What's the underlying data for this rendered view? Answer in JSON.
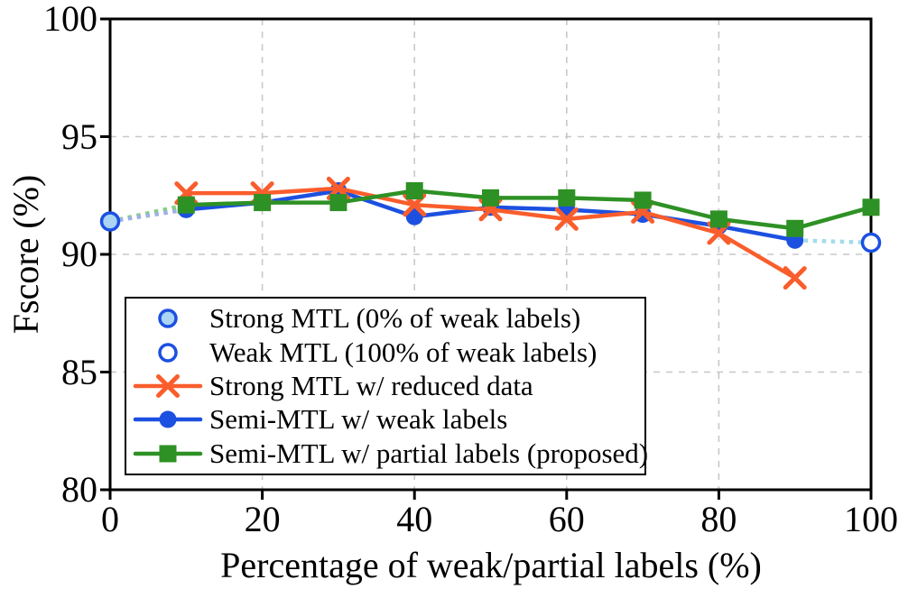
{
  "chart_data": {
    "type": "line",
    "xlabel": "Percentage of weak/partial labels (%)",
    "ylabel": "Fscore (%)",
    "xlim": [
      0,
      100
    ],
    "ylim": [
      80,
      100
    ],
    "x_ticks": [
      0,
      20,
      40,
      60,
      80,
      100
    ],
    "y_ticks": [
      80,
      85,
      90,
      95,
      100
    ],
    "grid": true,
    "legend_position": "lower-left",
    "colors": {
      "orange": "#FA5D2C",
      "blue": "#1C50E0",
      "green": "#2E9125",
      "light_blue_fill": "#A9D4F4",
      "pale_green_dash": "#86CE86",
      "pale_blue_dash": "#9FAFE6",
      "pale_cyan_dash": "#A2DCE8",
      "grid": "#C8C8C8",
      "axis": "#000000"
    },
    "series": [
      {
        "id": "strong-mtl-reduced-data",
        "name": "Strong MTL w/ reduced data",
        "marker": "x",
        "color": "#FA5D2C",
        "zorder": 2,
        "x": [
          10,
          20,
          30,
          40,
          50,
          60,
          70,
          80,
          90
        ],
        "y": [
          92.6,
          92.6,
          92.8,
          92.1,
          91.9,
          91.5,
          91.8,
          90.9,
          89.0
        ]
      },
      {
        "id": "semi-mtl-weak-labels",
        "name": "Semi-MTL w/ weak labels",
        "marker": "circle",
        "color": "#1C50E0",
        "zorder": 1,
        "x": [
          10,
          20,
          30,
          40,
          50,
          60,
          70,
          80,
          90
        ],
        "y": [
          91.9,
          92.2,
          92.7,
          91.6,
          92.0,
          91.9,
          91.7,
          91.2,
          90.6
        ]
      },
      {
        "id": "semi-mtl-partial-labels",
        "name": "Semi-MTL w/ partial labels (proposed)",
        "marker": "square",
        "color": "#2E9125",
        "zorder": 3,
        "x": [
          10,
          20,
          30,
          40,
          50,
          60,
          70,
          80,
          90,
          100
        ],
        "y": [
          92.1,
          92.2,
          92.2,
          92.7,
          92.4,
          92.4,
          92.3,
          91.5,
          91.1,
          92.0
        ]
      }
    ],
    "points": [
      {
        "id": "strong-mtl-point",
        "name": "Strong MTL (0% of weak labels)",
        "x": 0,
        "y": 91.4,
        "marker": "circle",
        "fill": "#A9D4F4",
        "edge": "#1C50E0"
      },
      {
        "id": "weak-mtl-point",
        "name": "Weak MTL (100% of weak labels)",
        "x": 100,
        "y": 90.5,
        "marker": "circle",
        "fill": "#FFFFFF",
        "edge": "#1C50E0"
      }
    ],
    "connectors": [
      {
        "from": [
          0,
          91.4
        ],
        "to": [
          10,
          92.1
        ],
        "color": "#86CE86",
        "style": "dotted"
      },
      {
        "from": [
          0,
          91.4
        ],
        "to": [
          10,
          91.9
        ],
        "color": "#9FAFE6",
        "style": "dotted"
      },
      {
        "from": [
          90,
          90.6
        ],
        "to": [
          100,
          90.5
        ],
        "color": "#A2DCE8",
        "style": "dotted"
      }
    ]
  },
  "legend": {
    "items": [
      {
        "label": "Strong MTL (0% of weak labels)",
        "marker": "circle",
        "fill": "#A9D4F4",
        "edge": "#1C50E0",
        "line": null
      },
      {
        "label": "Weak MTL (100% of weak labels)",
        "marker": "circle",
        "fill": "#FFFFFF",
        "edge": "#1C50E0",
        "line": null
      },
      {
        "label": "Strong MTL w/ reduced data",
        "marker": "x",
        "color": "#FA5D2C",
        "line": "#FA5D2C"
      },
      {
        "label": "Semi-MTL w/ weak labels",
        "marker": "circle",
        "color": "#1C50E0",
        "line": "#1C50E0"
      },
      {
        "label": "Semi-MTL w/ partial labels (proposed)",
        "marker": "square",
        "color": "#2E9125",
        "line": "#2E9125"
      }
    ]
  }
}
